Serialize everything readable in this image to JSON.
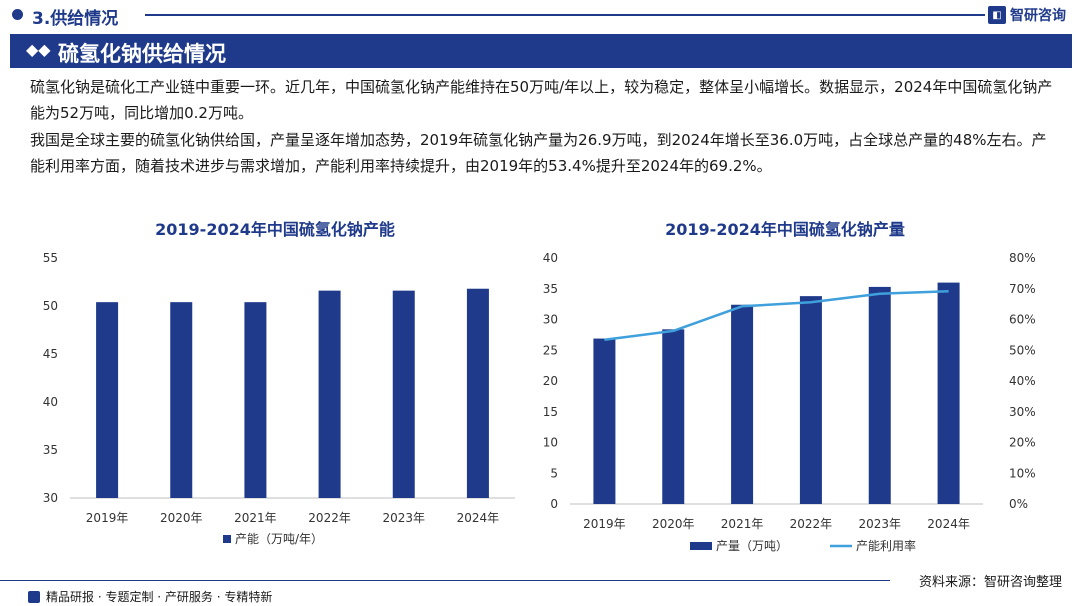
{
  "header": {
    "section_title": "3.供给情况",
    "brand": "智研咨询",
    "brand_logo_icon": "brand-logo-icon"
  },
  "banner": {
    "title": "硫氢化钠供给情况",
    "icon": "double-diamond-icon"
  },
  "paragraphs": [
    "硫氢化钠是硫化工产业链中重要一环。近几年，中国硫氢化钠产能维持在50万吨/年以上，较为稳定，整体呈小幅增长。数据显示，2024年中国硫氢化钠产能为52万吨，同比增加0.2万吨。",
    "我国是全球主要的硫氢化钠供给国，产量呈逐年增加态势，2019年硫氢化钠产量为26.9万吨，到2024年增长至36.0万吨，占全球总产量的48%左右。产能利用率方面，随着技术进步与需求增加，产能利用率持续提升，由2019年的53.4%提升至2024年的69.2%。"
  ],
  "colors": {
    "primary": "#1f3a8a",
    "line": "#3fa0dc"
  },
  "chart_data": [
    {
      "type": "bar",
      "title": "2019-2024年中国硫氢化钠产能",
      "categories": [
        "2019年",
        "2020年",
        "2021年",
        "2022年",
        "2023年",
        "2024年"
      ],
      "series": [
        {
          "name": "产能（万吨/年）",
          "values": [
            50.4,
            50.4,
            50.4,
            51.6,
            51.6,
            51.8
          ]
        }
      ],
      "ylim": [
        30,
        55
      ],
      "yticks": [
        "30",
        "35",
        "40",
        "45",
        "50",
        "55"
      ],
      "legend": "bottom"
    },
    {
      "type": "bar+line",
      "title": "2019-2024年中国硫氢化钠产量",
      "categories": [
        "2019年",
        "2020年",
        "2021年",
        "2022年",
        "2023年",
        "2024年"
      ],
      "series": [
        {
          "name": "产量（万吨）",
          "type": "bar",
          "axis": "left",
          "values": [
            26.9,
            28.4,
            32.4,
            33.8,
            35.3,
            36.0
          ]
        },
        {
          "name": "产能利用率",
          "type": "line",
          "axis": "right",
          "values": [
            53.4,
            56.3,
            64.3,
            65.6,
            68.4,
            69.2
          ]
        }
      ],
      "ylim_left": [
        0,
        40
      ],
      "yticks_left": [
        "0",
        "5",
        "10",
        "15",
        "20",
        "25",
        "30",
        "35",
        "40"
      ],
      "ylim_right": [
        0,
        80
      ],
      "yticks_right": [
        "0%",
        "10%",
        "20%",
        "30%",
        "40%",
        "50%",
        "60%",
        "70%",
        "80%"
      ],
      "legend": "bottom"
    }
  ],
  "footer": {
    "left": "精品研报 · 专题定制 · 产研服务 · 专精特新",
    "right": "资料来源：智研咨询整理"
  }
}
